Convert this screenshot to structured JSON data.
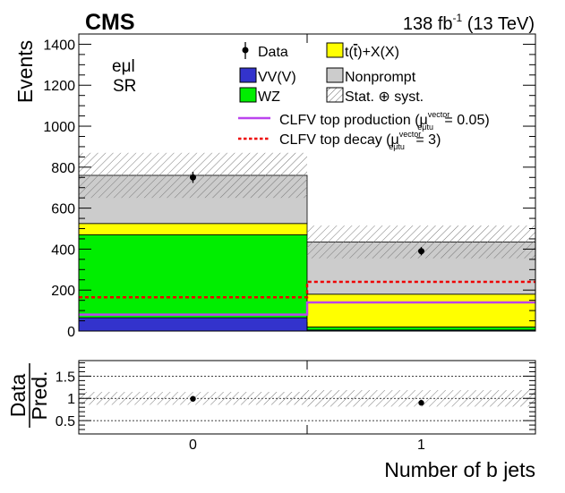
{
  "labels": {
    "experiment": "CMS",
    "lumi_value": "138 fb",
    "lumi_exp": "-1",
    "energy": "(13 TeV)",
    "channel": "eμl",
    "region": "SR"
  },
  "legend": {
    "data": "Data",
    "vvv": "VV(V)",
    "wz": "WZ",
    "ttx_prefix": "t(",
    "ttx_tbar": "t",
    "ttx_suffix": ")+X(X)",
    "nonprompt": "Nonprompt",
    "unc_prefix": "Stat. ",
    "unc_oplus": "⊕",
    "unc_suffix": " syst.",
    "prod_prefix": "CLFV top production (μ",
    "prod_sup": "vector",
    "prod_sub": "eμtu",
    "prod_suffix": " = 0.05)",
    "decay_prefix": "CLFV top decay (μ",
    "decay_sup": "vector",
    "decay_sub": "eμtu",
    "decay_suffix": " = 3)"
  },
  "colors": {
    "vvv": "#3333cc",
    "wz": "#00ee00",
    "ttx": "#ffff00",
    "nonprompt": "#cccccc",
    "prod": "#bb44ee",
    "decay": "#ee0000"
  },
  "chart_data": {
    "type": "bar",
    "stacked": true,
    "title": "",
    "xlabel": "Number of b jets",
    "ylabel": "Events",
    "ratio_ylabel_top": "Data",
    "ratio_ylabel_bottom": "Pred.",
    "categories": [
      "0",
      "1"
    ],
    "bin_edges": [
      -0.5,
      0.5,
      1.5
    ],
    "ylim": [
      0,
      1450
    ],
    "yticks": [
      0,
      200,
      400,
      600,
      800,
      1000,
      1200,
      1400
    ],
    "series": [
      {
        "name": "VV(V)",
        "key": "vvv",
        "values": [
          65,
          5
        ]
      },
      {
        "name": "WZ",
        "key": "wz",
        "values": [
          405,
          15
        ]
      },
      {
        "name": "t(t)+X(X)",
        "key": "ttx",
        "values": [
          55,
          160
        ]
      },
      {
        "name": "Nonprompt",
        "key": "nonprompt",
        "values": [
          235,
          255
        ]
      }
    ],
    "total_prediction": [
      760,
      435
    ],
    "uncertainty": [
      110,
      80
    ],
    "data": {
      "values": [
        750,
        390
      ],
      "errors": [
        27,
        20
      ]
    },
    "signals": [
      {
        "name": "CLFV top production",
        "key": "prod",
        "values": [
          80,
          140
        ]
      },
      {
        "name": "CLFV top decay",
        "key": "decay",
        "values": [
          165,
          240
        ]
      }
    ],
    "ratio": {
      "ylim": [
        0.2,
        1.85
      ],
      "yticks": [
        0.5,
        1,
        1.5
      ],
      "ytick_labels": [
        "0.5",
        "1",
        "1.5"
      ],
      "gridlines": [
        0.5,
        1,
        1.5
      ],
      "values": [
        0.99,
        0.9
      ],
      "errors": [
        0.035,
        0.045
      ],
      "band": [
        0.145,
        0.185
      ]
    }
  }
}
